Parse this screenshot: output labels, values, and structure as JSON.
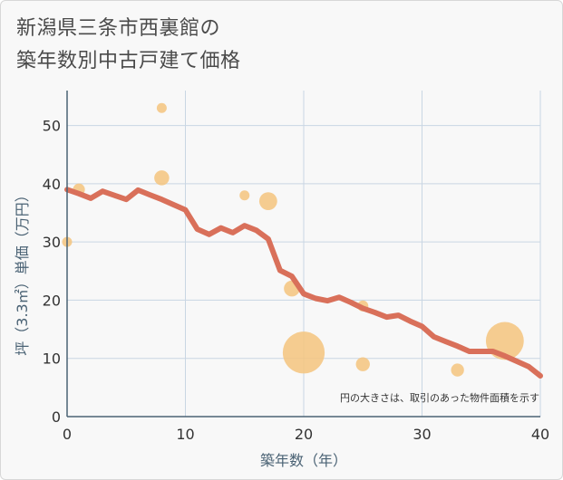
{
  "header": {
    "title_line1": "新潟県三条市西裏館の",
    "title_line2": "築年数別中古戸建て価格"
  },
  "chart_data": {
    "type": "scatter+line",
    "xlabel": "築年数（年）",
    "ylabel": "坪（3.3㎡）単価（万円）",
    "xlim": [
      0,
      40
    ],
    "ylim": [
      0,
      56
    ],
    "xticks": [
      0,
      10,
      20,
      30,
      40
    ],
    "yticks": [
      0,
      10,
      20,
      30,
      40,
      50
    ],
    "grid": true,
    "note": "円の大きさは、取引のあった物件面積を示す",
    "colors": {
      "line": "#d9705a",
      "bubble": "#f5c47e",
      "grid": "#c9d6e3",
      "axis": "#4a6274"
    },
    "scatter": [
      {
        "x": 0,
        "y": 30,
        "size": 1
      },
      {
        "x": 1,
        "y": 39,
        "size": 1.2
      },
      {
        "x": 8,
        "y": 53,
        "size": 1
      },
      {
        "x": 8,
        "y": 41,
        "size": 1.5
      },
      {
        "x": 15,
        "y": 38,
        "size": 1
      },
      {
        "x": 17,
        "y": 37,
        "size": 1.8
      },
      {
        "x": 19,
        "y": 22,
        "size": 1.6
      },
      {
        "x": 20,
        "y": 11,
        "size": 4.2
      },
      {
        "x": 25,
        "y": 19,
        "size": 1.1
      },
      {
        "x": 25,
        "y": 9,
        "size": 1.4
      },
      {
        "x": 33,
        "y": 8,
        "size": 1.3
      },
      {
        "x": 37,
        "y": 13,
        "size": 3.8
      }
    ],
    "line": {
      "x": [
        0,
        1,
        2,
        3,
        4,
        5,
        6,
        7,
        8,
        9,
        10,
        11,
        12,
        13,
        14,
        15,
        16,
        17,
        18,
        19,
        20,
        21,
        22,
        23,
        24,
        25,
        26,
        27,
        28,
        29,
        30,
        31,
        32,
        33,
        34,
        35,
        36,
        37,
        38,
        39,
        40
      ],
      "y": [
        39,
        38.3,
        37.5,
        38.7,
        38,
        37.3,
        38.9,
        38.1,
        37.3,
        36.4,
        35.5,
        32.2,
        31.3,
        32.4,
        31.6,
        32.8,
        32,
        30.5,
        25.1,
        24.1,
        21.1,
        20.3,
        19.9,
        20.5,
        19.6,
        18.6,
        17.9,
        17.1,
        17.4,
        16.4,
        15.5,
        13.7,
        12.9,
        12.1,
        11.2,
        11.2,
        11.2,
        10.4,
        9.5,
        8.6,
        7
      ]
    }
  }
}
